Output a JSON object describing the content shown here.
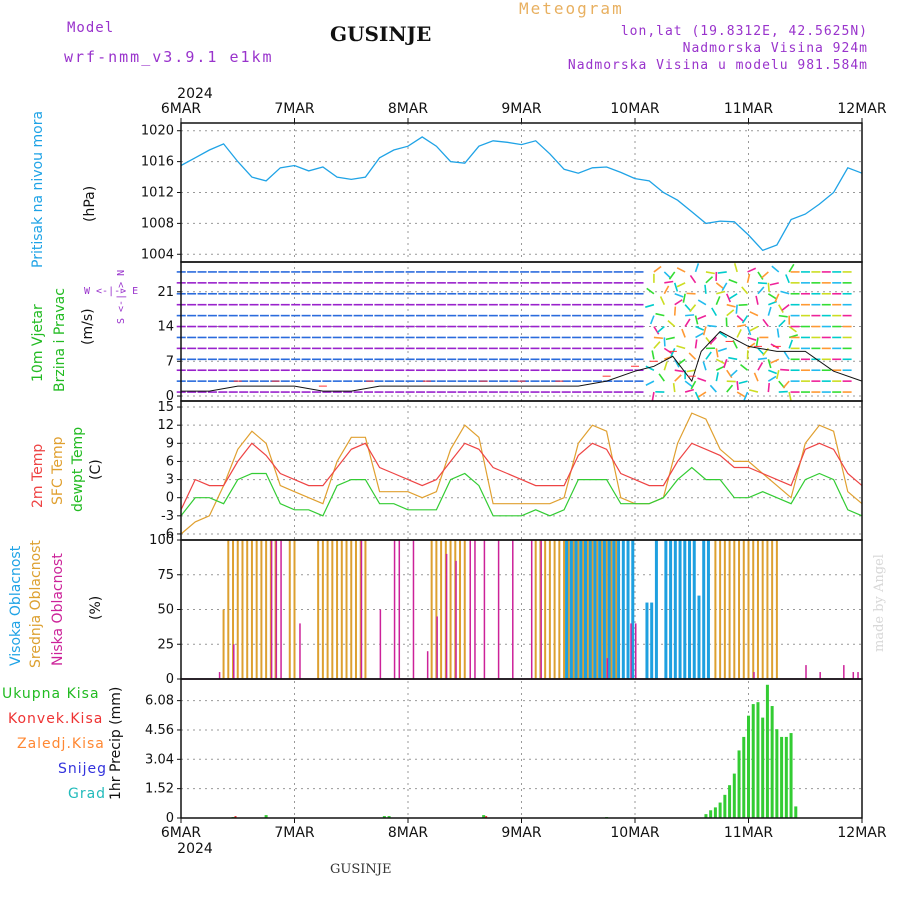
{
  "header": {
    "model_label": "Model",
    "model_name": "wrf-nmm_v3.9.1 e1km",
    "title": "GUSINJE",
    "meteogram": "Meteogram",
    "lonlat": "lon,lat (19.8312E, 42.5625N)",
    "altitude": "Nadmorska Visina 924m",
    "model_altitude": "Nadmorska Visina u modelu 981.584m"
  },
  "time_axis": {
    "year": "2024",
    "labels": [
      "6MAR",
      "7MAR",
      "8MAR",
      "9MAR",
      "10MAR",
      "11MAR",
      "12MAR"
    ]
  },
  "footer": {
    "station": "GUSINJE",
    "credit": "made by Angel"
  },
  "panels": {
    "pressure": {
      "label": "Pritisak na nivou mora",
      "unit": "(hPa)",
      "ticks": [
        "1004",
        "1008",
        "1012",
        "1016",
        "1020"
      ]
    },
    "wind": {
      "label1": "10m Vjetar",
      "label2": "Brzina i Pravac",
      "unit": "(m/s)",
      "ticks": [
        "0",
        "7",
        "14",
        "21"
      ],
      "compass": "W <-|-> E",
      "compass_ns": "S <-|-> N"
    },
    "temperature": {
      "label1": "2m Temp",
      "label2": "SFC Temp",
      "label3": "dewpt Temp",
      "unit": "(C)",
      "ticks": [
        "-6",
        "-3",
        "0",
        "3",
        "6",
        "9",
        "12",
        "15"
      ]
    },
    "cloud": {
      "label1": "Visoka Oblacnost",
      "label2": "Srednja Oblacnost",
      "label3": "Niska Oblacnost",
      "unit": "(%)",
      "ticks": [
        "0",
        "25",
        "50",
        "75",
        "100"
      ]
    },
    "precip": {
      "unit": "1hr Precip (mm)",
      "ticks": [
        "0",
        "1.52",
        "3.04",
        "4.56",
        "6.08"
      ],
      "legend": [
        "Ukupna Kisa",
        "Konvek.Kisa",
        "Zaledj.Kisa",
        "Snijeg",
        "Grad"
      ]
    }
  },
  "colors": {
    "pressure": "#1fa3e6",
    "temp2m": "#ee4444",
    "sfc": "#e0a030",
    "dewpt": "#33cc33",
    "high_cloud": "#1ea0e0",
    "mid_cloud": "#dda030",
    "low_cloud": "#cc2299",
    "precip_total": "#33cc33",
    "precip_conv": "#ee3333",
    "precip_frz": "#ff8833",
    "snow": "#3333dd",
    "hail": "#22bbbb",
    "axis_purple": "#9933cc"
  },
  "chart_data": [
    {
      "type": "line",
      "title": "Pritisak na nivou mora",
      "ylabel": "(hPa)",
      "ylim": [
        1003,
        1021
      ],
      "x_hours": [
        0,
        3,
        6,
        9,
        12,
        15,
        18,
        21,
        24,
        27,
        30,
        33,
        36,
        39,
        42,
        45,
        48,
        51,
        54,
        57,
        60,
        63,
        66,
        69,
        72,
        75,
        78,
        81,
        84,
        87,
        90,
        93,
        96,
        99,
        102,
        105,
        108,
        111,
        114,
        117,
        120,
        123,
        126,
        129,
        132,
        135,
        138,
        141,
        144
      ],
      "series": [
        {
          "name": "Pritisak",
          "values": [
            1015.5,
            1016.5,
            1017.5,
            1018.3,
            1016,
            1014,
            1013.5,
            1015.2,
            1015.5,
            1014.8,
            1015.3,
            1014,
            1013.7,
            1014,
            1016.5,
            1017.5,
            1018,
            1019.2,
            1018,
            1016,
            1015.8,
            1018,
            1018.7,
            1018.5,
            1018.2,
            1018.7,
            1017,
            1015,
            1014.5,
            1015.2,
            1015.3,
            1014.6,
            1013.8,
            1013.5,
            1012,
            1011,
            1009.5,
            1008,
            1008.3,
            1008.2,
            1006.5,
            1004.5,
            1005.2,
            1008.5,
            1009.2,
            1010.5,
            1012,
            1015.2,
            1014.5
          ]
        }
      ]
    },
    {
      "type": "line",
      "title": "10m Vjetar Brzina i Pravac",
      "ylabel": "(m/s)",
      "ylim": [
        -1,
        27
      ],
      "x_hours": [
        0,
        6,
        12,
        18,
        24,
        30,
        36,
        42,
        48,
        54,
        60,
        66,
        72,
        78,
        84,
        90,
        96,
        100,
        104,
        108,
        110,
        114,
        120,
        126,
        132,
        138,
        144
      ],
      "series": [
        {
          "name": "Brzina",
          "values": [
            1,
            1,
            2,
            2,
            2,
            1,
            1,
            2,
            2,
            2,
            2,
            2,
            2,
            2,
            2,
            3,
            5,
            6,
            8,
            3,
            9,
            13,
            10,
            9,
            9,
            5,
            3
          ]
        }
      ]
    },
    {
      "type": "line",
      "title": "2m Temp / SFC Temp / dewpt Temp",
      "ylabel": "(C)",
      "ylim": [
        -7,
        16
      ],
      "x_hours": [
        0,
        3,
        6,
        9,
        12,
        15,
        18,
        21,
        24,
        27,
        30,
        33,
        36,
        39,
        42,
        45,
        48,
        51,
        54,
        57,
        60,
        63,
        66,
        69,
        72,
        75,
        78,
        81,
        84,
        87,
        90,
        93,
        96,
        99,
        102,
        105,
        108,
        111,
        114,
        117,
        120,
        123,
        126,
        129,
        132,
        135,
        138,
        141,
        144
      ],
      "series": [
        {
          "name": "2m Temp",
          "values": [
            -2,
            3,
            2,
            2,
            6,
            9,
            7,
            4,
            3,
            2,
            2,
            5,
            8,
            9,
            5,
            4,
            3,
            2,
            3,
            6,
            9,
            8,
            5,
            4,
            3,
            2,
            2,
            2,
            7,
            9,
            8,
            4,
            3,
            2,
            2,
            6,
            9,
            8,
            7,
            5,
            5,
            4,
            3,
            2,
            8,
            9,
            8,
            4,
            2
          ]
        },
        {
          "name": "SFC Temp",
          "values": [
            -6,
            -4,
            -3,
            2,
            8,
            11,
            9,
            2,
            1,
            0,
            -1,
            6,
            10,
            10,
            1,
            1,
            1,
            0,
            1,
            8,
            12,
            10,
            -1,
            -1,
            -1,
            -1,
            -1,
            0,
            9,
            12,
            11,
            0,
            -1,
            -1,
            0,
            9,
            14,
            13,
            8,
            6,
            6,
            4,
            2,
            0,
            9,
            12,
            11,
            1,
            -1
          ]
        },
        {
          "name": "dewpt Temp",
          "values": [
            -3,
            0,
            0,
            -1,
            3,
            4,
            4,
            -1,
            -2,
            -2,
            -3,
            2,
            3,
            3,
            -1,
            -1,
            -2,
            -2,
            -2,
            3,
            4,
            2,
            -3,
            -3,
            -3,
            -2,
            -3,
            -2,
            3,
            3,
            3,
            -1,
            -1,
            -1,
            0,
            3,
            5,
            3,
            3,
            0,
            0,
            1,
            0,
            -1,
            3,
            4,
            3,
            -2,
            -3
          ]
        }
      ]
    },
    {
      "type": "bar",
      "title": "Oblacnost",
      "ylabel": "(%)",
      "ylim": [
        0,
        100
      ],
      "series": [
        {
          "name": "Visoka Oblacnost",
          "x_hours": [
            81,
            82,
            83,
            84,
            85,
            86,
            87,
            88,
            89,
            90,
            91,
            92,
            93,
            94,
            95,
            98,
            99,
            100,
            102,
            103,
            104,
            105,
            106,
            107,
            108,
            109,
            110,
            111
          ],
          "values": [
            100,
            100,
            100,
            100,
            100,
            100,
            100,
            100,
            100,
            100,
            100,
            100,
            100,
            100,
            100,
            55,
            55,
            100,
            100,
            100,
            100,
            100,
            100,
            100,
            100,
            60,
            100,
            100
          ]
        },
        {
          "name": "Srednja Oblacnost",
          "x_hours": [
            9,
            10,
            11,
            12,
            13,
            14,
            15,
            16,
            17,
            18,
            19,
            20,
            23,
            24,
            29,
            30,
            31,
            32,
            33,
            34,
            35,
            36,
            37,
            38,
            39,
            53,
            54,
            55,
            56,
            57,
            58,
            59,
            60,
            75,
            76,
            77,
            78,
            79,
            80,
            81,
            82,
            83,
            84,
            85,
            86,
            87,
            88,
            89,
            90,
            91,
            92,
            113,
            114,
            115,
            116,
            117,
            118,
            119,
            120,
            121,
            122,
            123,
            124,
            125,
            126
          ],
          "values": [
            50,
            100,
            100,
            100,
            100,
            100,
            100,
            100,
            100,
            100,
            100,
            100,
            100,
            100,
            100,
            100,
            100,
            100,
            100,
            100,
            100,
            100,
            100,
            100,
            100,
            100,
            100,
            100,
            100,
            100,
            100,
            100,
            100,
            100,
            100,
            100,
            100,
            100,
            100,
            100,
            100,
            100,
            100,
            100,
            100,
            100,
            100,
            100,
            100,
            100,
            100,
            100,
            100,
            100,
            100,
            100,
            100,
            100,
            100,
            100,
            100,
            100,
            100,
            100,
            100
          ]
        },
        {
          "name": "Niska Oblacnost",
          "x_hours": [
            8,
            11,
            19,
            20,
            21,
            25,
            38,
            42,
            45,
            46,
            49,
            52,
            54,
            56,
            58,
            61,
            62,
            64,
            67,
            70,
            74,
            76,
            90,
            95,
            96,
            121,
            132,
            135,
            140,
            142,
            143
          ],
          "values": [
            5,
            25,
            100,
            100,
            100,
            40,
            100,
            50,
            100,
            100,
            100,
            20,
            45,
            90,
            85,
            100,
            100,
            100,
            100,
            100,
            100,
            100,
            15,
            40,
            40,
            5,
            10,
            5,
            10,
            5,
            5
          ]
        }
      ]
    },
    {
      "type": "bar",
      "title": "1hr Precip",
      "ylabel": "1hr Precip (mm)",
      "ylim": [
        0,
        7.2
      ],
      "series": [
        {
          "name": "Ukupna Kisa",
          "x_hours": [
            11,
            18,
            43,
            44,
            64,
            90,
            111,
            112,
            113,
            114,
            115,
            116,
            117,
            118,
            119,
            120,
            121,
            122,
            123,
            124,
            125,
            126,
            127,
            128,
            129,
            130
          ],
          "values": [
            0.05,
            0.15,
            0.1,
            0.1,
            0.15,
            0.05,
            0.2,
            0.4,
            0.55,
            0.8,
            1.2,
            1.7,
            2.3,
            3.5,
            4.2,
            5.3,
            5.9,
            6.0,
            5.2,
            6.9,
            5.8,
            4.6,
            4.2,
            4.2,
            4.4,
            0.6
          ]
        },
        {
          "name": "Konvek.Kisa",
          "x_hours": [
            11,
            64
          ],
          "values": [
            0.1,
            0.1
          ]
        }
      ]
    }
  ]
}
